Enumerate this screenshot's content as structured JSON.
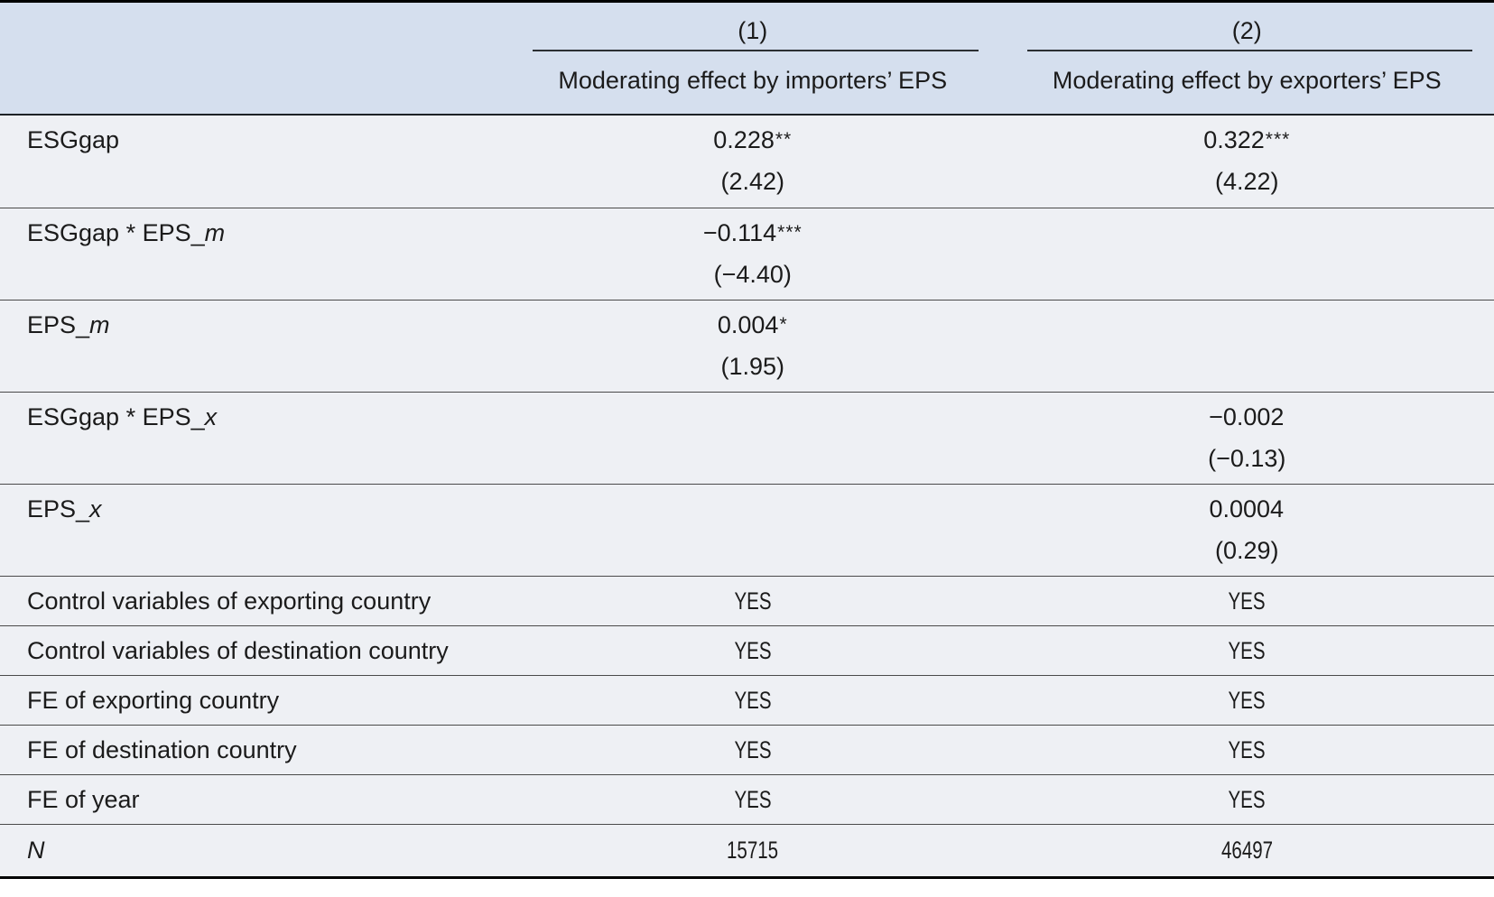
{
  "table": {
    "header": {
      "col1_num": "(1)",
      "col2_num": "(2)",
      "col1_sub": "Moderating effect by importers’ EPS",
      "col2_sub": "Moderating effect by exporters’ EPS"
    },
    "coef_rows": [
      {
        "label": "ESGgap",
        "label_it": "",
        "c1": {
          "coef": "0.228",
          "stars": "**",
          "t": "(2.42)"
        },
        "c2": {
          "coef": "0.322",
          "stars": "***",
          "t": "(4.22)"
        }
      },
      {
        "label": "ESGgap * EPS_",
        "label_it": "m",
        "c1": {
          "coef": "−0.114",
          "stars": "***",
          "t": "(−4.40)"
        },
        "c2": {
          "coef": "",
          "stars": "",
          "t": ""
        }
      },
      {
        "label": "EPS_",
        "label_it": "m",
        "c1": {
          "coef": "0.004",
          "stars": "*",
          "t": "(1.95)"
        },
        "c2": {
          "coef": "",
          "stars": "",
          "t": ""
        }
      },
      {
        "label": "ESGgap * EPS_",
        "label_it": "x",
        "c1": {
          "coef": "",
          "stars": "",
          "t": ""
        },
        "c2": {
          "coef": "−0.002",
          "stars": "",
          "t": "(−0.13)"
        }
      },
      {
        "label": "EPS_",
        "label_it": "x",
        "c1": {
          "coef": "",
          "stars": "",
          "t": ""
        },
        "c2": {
          "coef": "0.0004",
          "stars": "",
          "t": "(0.29)"
        }
      }
    ],
    "info_rows": [
      {
        "label": "Control variables of exporting country",
        "label_it": "",
        "c1": "YES",
        "c2": "YES"
      },
      {
        "label": "Control variables of destination country",
        "label_it": "",
        "c1": "YES",
        "c2": "YES"
      },
      {
        "label": "FE of exporting country",
        "label_it": "",
        "c1": "YES",
        "c2": "YES"
      },
      {
        "label": "FE of destination country",
        "label_it": "",
        "c1": "YES",
        "c2": "YES"
      },
      {
        "label": "FE of year",
        "label_it": "",
        "c1": "YES",
        "c2": "YES"
      },
      {
        "label": "",
        "label_it": "N",
        "c1": "15715",
        "c2": "46497"
      }
    ],
    "colors": {
      "header_bg": "#d5dfee",
      "body_bg": "#eef0f4",
      "text": "#1b1b1b"
    }
  }
}
